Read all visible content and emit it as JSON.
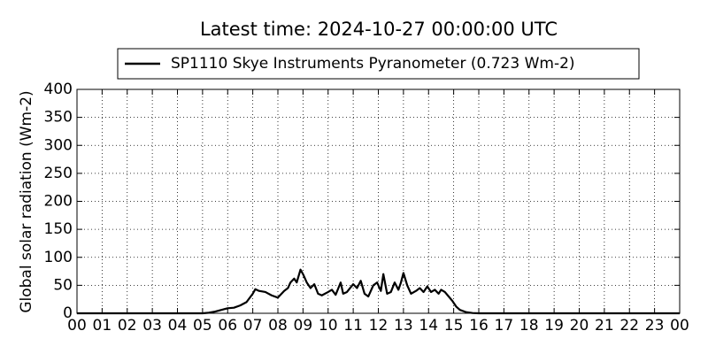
{
  "chart_data": {
    "type": "line",
    "title": "Latest time: 2024-10-27 00:00:00 UTC",
    "y_label": "Global solar radiation (Wm-2)",
    "x": [
      0,
      5,
      5.25,
      5.5,
      5.75,
      6,
      6.25,
      6.5,
      6.75,
      7,
      7.1,
      7.25,
      7.5,
      7.75,
      8,
      8.25,
      8.4,
      8.5,
      8.65,
      8.75,
      8.9,
      9,
      9.15,
      9.3,
      9.45,
      9.6,
      9.75,
      10,
      10.15,
      10.3,
      10.5,
      10.6,
      10.75,
      11,
      11.15,
      11.3,
      11.45,
      11.6,
      11.8,
      11.95,
      12.1,
      12.2,
      12.35,
      12.5,
      12.65,
      12.8,
      12.9,
      13,
      13.15,
      13.3,
      13.5,
      13.65,
      13.8,
      13.95,
      14.1,
      14.25,
      14.4,
      14.5,
      14.65,
      14.8,
      14.95,
      15.1,
      15.25,
      15.5,
      15.75,
      16,
      24
    ],
    "series": [
      {
        "name": "SP1110 Skye Instruments Pyranometer (0.723 Wm-2)",
        "color": "#000000",
        "values": [
          0,
          0,
          1,
          3,
          6,
          9,
          10,
          14,
          20,
          35,
          43,
          40,
          38,
          32,
          28,
          40,
          45,
          55,
          62,
          55,
          78,
          70,
          55,
          45,
          52,
          35,
          32,
          38,
          42,
          33,
          55,
          35,
          38,
          52,
          45,
          58,
          35,
          30,
          50,
          55,
          40,
          70,
          35,
          38,
          55,
          42,
          55,
          72,
          50,
          35,
          40,
          45,
          38,
          48,
          38,
          42,
          35,
          42,
          38,
          30,
          22,
          12,
          6,
          2,
          0.5,
          0,
          0
        ]
      }
    ],
    "xlim": [
      0,
      24
    ],
    "xticks": [
      {
        "value": 0,
        "label": "00"
      },
      {
        "value": 1,
        "label": "01"
      },
      {
        "value": 2,
        "label": "02"
      },
      {
        "value": 3,
        "label": "03"
      },
      {
        "value": 4,
        "label": "04"
      },
      {
        "value": 5,
        "label": "05"
      },
      {
        "value": 6,
        "label": "06"
      },
      {
        "value": 7,
        "label": "07"
      },
      {
        "value": 8,
        "label": "08"
      },
      {
        "value": 9,
        "label": "09"
      },
      {
        "value": 10,
        "label": "10"
      },
      {
        "value": 11,
        "label": "11"
      },
      {
        "value": 12,
        "label": "12"
      },
      {
        "value": 13,
        "label": "13"
      },
      {
        "value": 14,
        "label": "14"
      },
      {
        "value": 15,
        "label": "15"
      },
      {
        "value": 16,
        "label": "16"
      },
      {
        "value": 17,
        "label": "17"
      },
      {
        "value": 18,
        "label": "18"
      },
      {
        "value": 19,
        "label": "19"
      },
      {
        "value": 20,
        "label": "20"
      },
      {
        "value": 21,
        "label": "21"
      },
      {
        "value": 22,
        "label": "22"
      },
      {
        "value": 23,
        "label": "23"
      },
      {
        "value": 24,
        "label": "00"
      }
    ],
    "ylim": [
      0,
      400
    ],
    "yticks": [
      0,
      50,
      100,
      150,
      200,
      250,
      300,
      350,
      400
    ],
    "grid": true
  }
}
